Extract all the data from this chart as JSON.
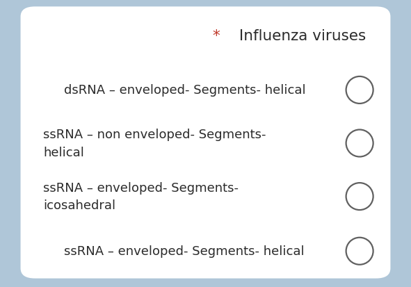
{
  "title_star": "*",
  "title_text": " Influenza viruses",
  "title_star_color": "#c0392b",
  "title_text_color": "#2b2b2b",
  "title_fontsize": 15.5,
  "background_outer": "#afc6d8",
  "background_card": "#ffffff",
  "options": [
    {
      "line1": "dsRNA – enveloped- Segments- helical",
      "line2": null,
      "indent": true
    },
    {
      "line1": "ssRNA – non enveloped- Segments-",
      "line2": "helical",
      "indent": false
    },
    {
      "line1": "ssRNA – enveloped- Segments-",
      "line2": "icosahedral",
      "indent": false
    },
    {
      "line1": "ssRNA – enveloped- Segments- helical",
      "line2": null,
      "indent": true
    }
  ],
  "option_fontsize": 13,
  "option_text_color": "#2b2b2b",
  "circle_edge_color": "#606060",
  "circle_lw": 1.6,
  "figwidth": 5.91,
  "figheight": 4.14,
  "dpi": 100
}
